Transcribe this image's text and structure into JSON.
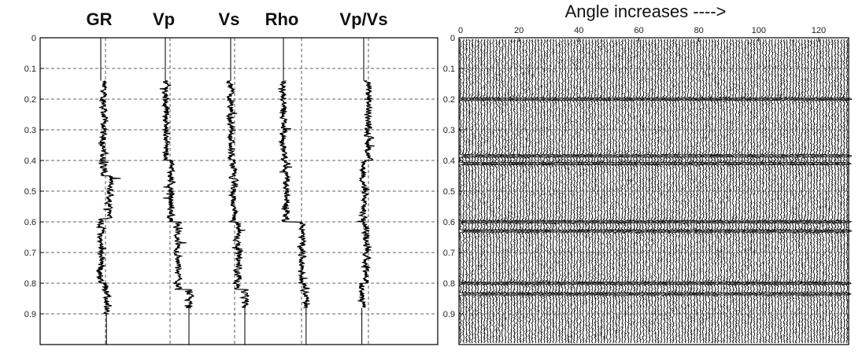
{
  "chart_data": [
    {
      "type": "line",
      "panel": "well-logs",
      "series": [
        {
          "name": "GR",
          "start": 0.14,
          "end": 0.9,
          "segments": [
            {
              "from": 0.14,
              "to": 0.45,
              "offset": 0.3
            },
            {
              "from": 0.45,
              "to": 0.59,
              "offset": 1.0
            },
            {
              "from": 0.59,
              "to": 0.8,
              "offset": 0.0
            },
            {
              "from": 0.8,
              "to": 0.9,
              "offset": 0.6
            }
          ]
        },
        {
          "name": "Vp",
          "start": 0.14,
          "end": 0.88,
          "segments": [
            {
              "from": 0.14,
              "to": 0.4,
              "offset": 0.1
            },
            {
              "from": 0.4,
              "to": 0.6,
              "offset": 0.6
            },
            {
              "from": 0.6,
              "to": 0.82,
              "offset": 1.3
            },
            {
              "from": 0.82,
              "to": 0.88,
              "offset": 2.5
            }
          ]
        },
        {
          "name": "Vs",
          "start": 0.14,
          "end": 0.88,
          "segments": [
            {
              "from": 0.14,
              "to": 0.4,
              "offset": 0.0
            },
            {
              "from": 0.4,
              "to": 0.6,
              "offset": 0.3
            },
            {
              "from": 0.6,
              "to": 0.82,
              "offset": 0.8
            },
            {
              "from": 0.82,
              "to": 0.88,
              "offset": 1.5
            }
          ]
        },
        {
          "name": "Rho",
          "start": 0.14,
          "end": 0.88,
          "segments": [
            {
              "from": 0.14,
              "to": 0.4,
              "offset": 0.0
            },
            {
              "from": 0.4,
              "to": 0.6,
              "offset": 0.3
            },
            {
              "from": 0.6,
              "to": 0.8,
              "offset": 2.0
            },
            {
              "from": 0.8,
              "to": 0.88,
              "offset": 2.4
            }
          ]
        },
        {
          "name": "Vp/Vs",
          "start": 0.14,
          "end": 0.88,
          "segments": [
            {
              "from": 0.14,
              "to": 0.4,
              "offset": 0.5
            },
            {
              "from": 0.4,
              "to": 0.6,
              "offset": 0.0
            },
            {
              "from": 0.6,
              "to": 0.8,
              "offset": 0.3
            },
            {
              "from": 0.8,
              "to": 0.88,
              "offset": -0.2
            }
          ]
        }
      ],
      "ylim": [
        0,
        1
      ],
      "yticks": [
        0,
        0.1,
        0.2,
        0.3,
        0.4,
        0.5,
        0.6,
        0.7,
        0.8,
        0.9
      ],
      "grid": true
    },
    {
      "type": "wiggle",
      "panel": "angle-gather",
      "title": "Angle increases ---->",
      "traces": 130,
      "xlim": [
        0,
        130
      ],
      "xticks": [
        0,
        20,
        40,
        60,
        80,
        100,
        120
      ],
      "ylim": [
        0,
        1
      ],
      "yticks": [
        0,
        0.1,
        0.2,
        0.3,
        0.4,
        0.5,
        0.6,
        0.7,
        0.8,
        0.9
      ],
      "events": [
        0.2,
        0.385,
        0.41,
        0.6,
        0.63,
        0.8,
        0.835
      ],
      "color": "#000000",
      "grid": true
    }
  ]
}
